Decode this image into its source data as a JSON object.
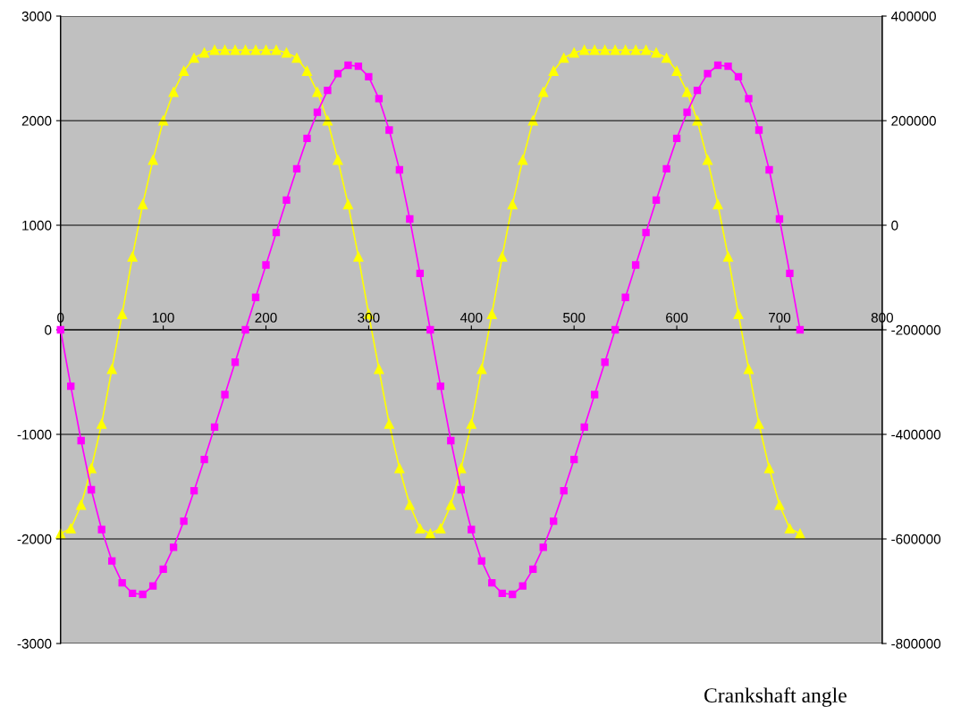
{
  "chart_data": {
    "type": "line",
    "xlabel": "Crankshaft angle",
    "x": [
      0,
      10,
      20,
      30,
      40,
      50,
      60,
      70,
      80,
      90,
      100,
      110,
      120,
      130,
      140,
      150,
      160,
      170,
      180,
      190,
      200,
      210,
      220,
      230,
      240,
      250,
      260,
      270,
      280,
      290,
      300,
      310,
      320,
      330,
      340,
      350,
      360,
      370,
      380,
      390,
      400,
      410,
      420,
      430,
      440,
      450,
      460,
      470,
      480,
      490,
      500,
      510,
      520,
      530,
      540,
      550,
      560,
      570,
      580,
      590,
      600,
      610,
      620,
      630,
      640,
      650,
      660,
      670,
      680,
      690,
      700,
      710,
      720
    ],
    "xlim": [
      0,
      800
    ],
    "xticks": [
      0,
      100,
      200,
      300,
      400,
      500,
      600,
      700,
      800
    ],
    "ylim": [
      -3000,
      3000
    ],
    "yticks": [
      -3000,
      -2000,
      -1000,
      0,
      1000,
      2000,
      3000
    ],
    "y2lim": [
      -800000,
      400000
    ],
    "y2ticks": [
      -800000,
      -600000,
      -400000,
      -200000,
      0,
      200000,
      400000
    ],
    "grid": "y",
    "legend": false,
    "series": [
      {
        "color": "#ff00ff",
        "marker": "square",
        "axis": "y",
        "values": [
          0,
          -540,
          -1060,
          -1530,
          -1910,
          -2210,
          -2420,
          -2520,
          -2530,
          -2450,
          -2290,
          -2080,
          -1830,
          -1540,
          -1240,
          -930,
          -620,
          -310,
          0,
          310,
          620,
          930,
          1240,
          1540,
          1830,
          2080,
          2290,
          2450,
          2530,
          2520,
          2420,
          2210,
          1910,
          1530,
          1060,
          540,
          0,
          -540,
          -1060,
          -1530,
          -1910,
          -2210,
          -2420,
          -2520,
          -2530,
          -2450,
          -2290,
          -2080,
          -1830,
          -1540,
          -1240,
          -930,
          -620,
          -310,
          0,
          310,
          620,
          930,
          1240,
          1540,
          1830,
          2080,
          2290,
          2450,
          2530,
          2520,
          2420,
          2210,
          1910,
          1530,
          1060,
          540,
          0
        ]
      },
      {
        "color": "#ffff00",
        "marker": "triangle",
        "axis": "y2",
        "values": [
          -590000,
          -580000,
          -535000,
          -465000,
          -380000,
          -275000,
          -170000,
          -60000,
          40000,
          125000,
          200000,
          255000,
          295000,
          320000,
          330000,
          335000,
          335000,
          335000,
          335000,
          335000,
          335000,
          335000,
          330000,
          320000,
          295000,
          255000,
          200000,
          125000,
          40000,
          -60000,
          -170000,
          -275000,
          -380000,
          -465000,
          -535000,
          -580000,
          -590000,
          -580000,
          -535000,
          -465000,
          -380000,
          -275000,
          -170000,
          -60000,
          40000,
          125000,
          200000,
          255000,
          295000,
          320000,
          330000,
          335000,
          335000,
          335000,
          335000,
          335000,
          335000,
          335000,
          330000,
          320000,
          295000,
          255000,
          200000,
          125000,
          40000,
          -60000,
          -170000,
          -275000,
          -380000,
          -465000,
          -535000,
          -580000,
          -590000
        ]
      }
    ]
  }
}
